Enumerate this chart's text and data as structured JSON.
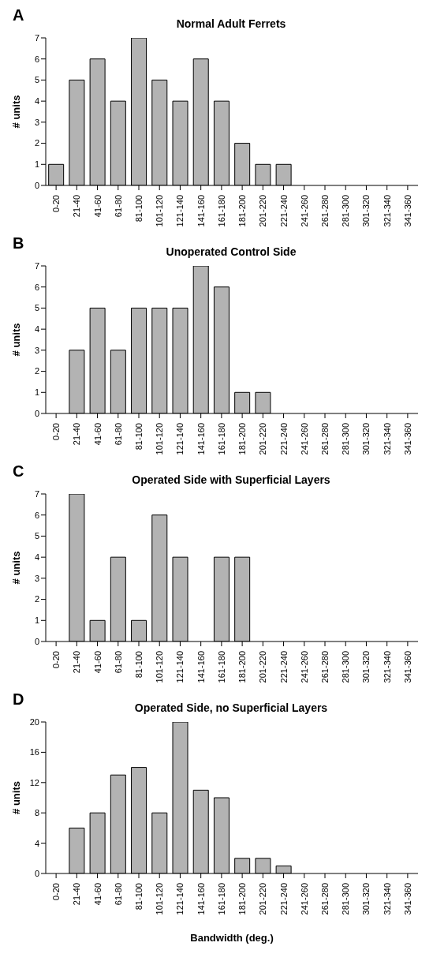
{
  "chart_data": [
    {
      "type": "bar",
      "title": "Normal Adult Ferrets",
      "ylabel": "# units",
      "annotations": [
        "A"
      ],
      "categories": [
        "0-20",
        "21-40",
        "41-60",
        "61-80",
        "81-100",
        "101-120",
        "121-140",
        "141-160",
        "161-180",
        "181-200",
        "201-220",
        "221-240",
        "241-260",
        "261-280",
        "281-300",
        "301-320",
        "321-340",
        "341-360"
      ],
      "values": [
        1,
        5,
        6,
        4,
        7,
        5,
        4,
        6,
        4,
        2,
        1,
        1,
        0,
        0,
        0,
        0,
        0,
        0
      ],
      "color": "#b3b3b3",
      "ylim": [
        0,
        7
      ],
      "yticks": [
        0,
        1,
        2,
        3,
        4,
        5,
        6,
        7
      ]
    },
    {
      "type": "bar",
      "title": "Unoperated Control Side",
      "ylabel": "# units",
      "annotations": [
        "B"
      ],
      "categories": [
        "0-20",
        "21-40",
        "41-60",
        "61-80",
        "81-100",
        "101-120",
        "121-140",
        "141-160",
        "161-180",
        "181-200",
        "201-220",
        "221-240",
        "241-260",
        "261-280",
        "281-300",
        "301-320",
        "321-340",
        "341-360"
      ],
      "values": [
        0,
        3,
        5,
        3,
        5,
        5,
        5,
        7,
        6,
        1,
        1,
        0,
        0,
        0,
        0,
        0,
        0,
        0
      ],
      "color": "#b3b3b3",
      "ylim": [
        0,
        7
      ],
      "yticks": [
        0,
        1,
        2,
        3,
        4,
        5,
        6,
        7
      ]
    },
    {
      "type": "bar",
      "title": "Operated Side with Superficial Layers",
      "ylabel": "# units",
      "annotations": [
        "C"
      ],
      "categories": [
        "0-20",
        "21-40",
        "41-60",
        "61-80",
        "81-100",
        "101-120",
        "121-140",
        "141-160",
        "161-180",
        "181-200",
        "201-220",
        "221-240",
        "241-260",
        "261-280",
        "281-300",
        "301-320",
        "321-340",
        "341-360"
      ],
      "values": [
        0,
        7,
        1,
        4,
        1,
        6,
        4,
        0,
        4,
        4,
        0,
        0,
        0,
        0,
        0,
        0,
        0,
        0
      ],
      "color": "#b3b3b3",
      "ylim": [
        0,
        7
      ],
      "yticks": [
        0,
        1,
        2,
        3,
        4,
        5,
        6,
        7
      ]
    },
    {
      "type": "bar",
      "title": "Operated Side, no Superficial Layers",
      "ylabel": "# units",
      "xlabel": "Bandwidth (deg.)",
      "annotations": [
        "D"
      ],
      "categories": [
        "0-20",
        "21-40",
        "41-60",
        "61-80",
        "81-100",
        "101-120",
        "121-140",
        "141-160",
        "161-180",
        "181-200",
        "201-220",
        "221-240",
        "241-260",
        "261-280",
        "281-300",
        "301-320",
        "321-340",
        "341-360"
      ],
      "values": [
        0,
        6,
        8,
        13,
        14,
        8,
        20,
        11,
        10,
        2,
        2,
        1,
        0,
        0,
        0,
        0,
        0,
        0
      ],
      "color": "#b3b3b3",
      "ylim": [
        0,
        20
      ],
      "yticks": [
        0,
        4,
        8,
        12,
        16,
        20
      ]
    }
  ]
}
